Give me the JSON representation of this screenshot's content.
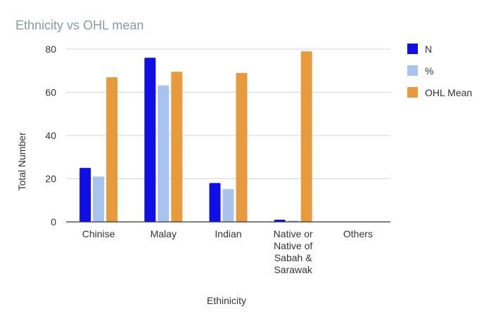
{
  "chart_data": {
    "type": "bar",
    "title": "Ethnicity vs OHL mean",
    "xlabel": "Ethinicity",
    "ylabel": "Total Number",
    "ylim": [
      0,
      80
    ],
    "yticks": [
      "0",
      "20",
      "40",
      "60",
      "80"
    ],
    "grid": true,
    "legend_position": "right",
    "categories": [
      [
        "Chinise"
      ],
      [
        "Malay"
      ],
      [
        "Indian"
      ],
      [
        "Native or",
        "Native of",
        "Sabah &",
        "Sarawak"
      ],
      [
        "Others"
      ]
    ],
    "series": [
      {
        "name": "N",
        "color": "#1010e6",
        "values": [
          25,
          76,
          18,
          1,
          0
        ]
      },
      {
        "name": "%",
        "color": "#a9c3ef",
        "values": [
          21,
          63.2,
          15.2,
          0.6,
          0
        ]
      },
      {
        "name": "OHL Mean",
        "color": "#e79b3d",
        "values": [
          67,
          69.5,
          69,
          79,
          0
        ]
      }
    ]
  },
  "colors": {
    "title": "#8a9a9a",
    "axis_text": "#333333",
    "grid": "#d6d6d6",
    "baseline": "#333333"
  }
}
